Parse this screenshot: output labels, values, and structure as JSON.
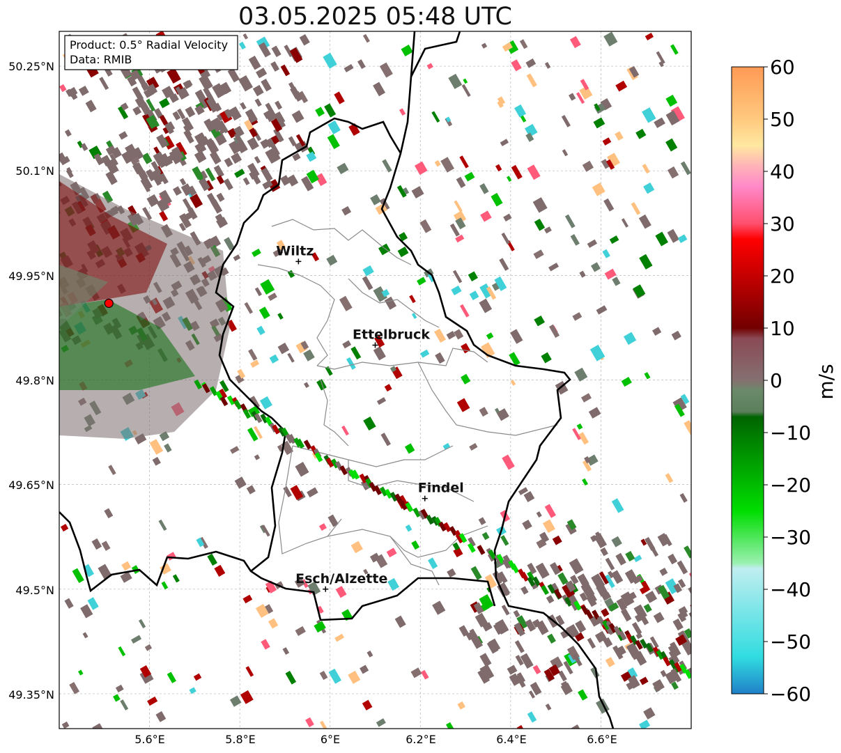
{
  "title": "03.05.2025 05:48 UTC",
  "info_box": {
    "product": "Product: 0.5° Radial Velocity",
    "data_source": "Data: RMIB"
  },
  "lat_ticks": [
    "50.25°N",
    "50.1°N",
    "49.95°N",
    "49.8°N",
    "49.65°N",
    "49.5°N",
    "49.35°N"
  ],
  "lon_ticks": [
    "5.6°E",
    "5.8°E",
    "6°E",
    "6.2°E",
    "6.4°E",
    "6.6°E"
  ],
  "cities": [
    {
      "name": "Wiltz",
      "lon": 5.93,
      "lat": 49.97
    },
    {
      "name": "Ettelbruck",
      "lon": 6.1,
      "lat": 49.85
    },
    {
      "name": "Findel",
      "lon": 6.21,
      "lat": 49.63
    },
    {
      "name": "Esch/Alzette",
      "lon": 5.99,
      "lat": 49.5
    }
  ],
  "radar_site": {
    "lon": 5.51,
    "lat": 49.91,
    "color": "#ff0000"
  },
  "colorbar": {
    "label": "m/s",
    "ticks": [
      "60",
      "50",
      "40",
      "30",
      "20",
      "10",
      "0",
      "−10",
      "−20",
      "−30",
      "−40",
      "−50",
      "−60"
    ],
    "range": [
      -60,
      60
    ],
    "stops": [
      {
        "v": 60,
        "color": "#ff9a55"
      },
      {
        "v": 50,
        "color": "#ffc97e"
      },
      {
        "v": 45,
        "color": "#ffe8a0"
      },
      {
        "v": 41,
        "color": "#ffb3b8"
      },
      {
        "v": 37,
        "color": "#ff88c8"
      },
      {
        "v": 30,
        "color": "#ff4f6e"
      },
      {
        "v": 27,
        "color": "#ff0000"
      },
      {
        "v": 10,
        "color": "#720000"
      },
      {
        "v": 8,
        "color": "#8a4a55"
      },
      {
        "v": 0,
        "color": "#857070"
      },
      {
        "v": -2,
        "color": "#6a8a6a"
      },
      {
        "v": -6,
        "color": "#5c7f5c"
      },
      {
        "v": -7,
        "color": "#006400"
      },
      {
        "v": -25,
        "color": "#00dd00"
      },
      {
        "v": -35,
        "color": "#9af0b0"
      },
      {
        "v": -36,
        "color": "#c0eef0"
      },
      {
        "v": -53,
        "color": "#30dce0"
      },
      {
        "v": -60,
        "color": "#2080c8"
      }
    ]
  }
}
